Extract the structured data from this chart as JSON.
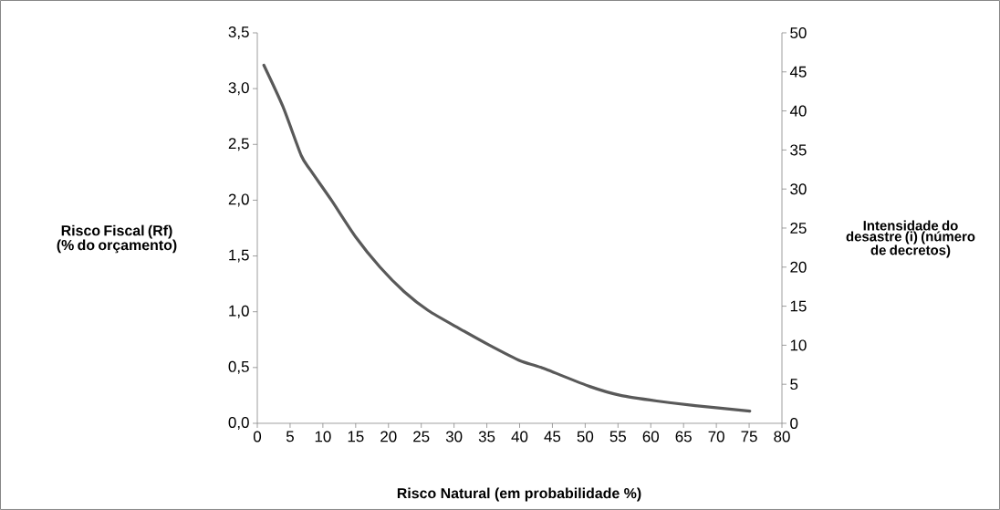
{
  "chart_data": {
    "type": "line",
    "xlabel": "Risco Natural (em probabilidade %)",
    "ylabel": "Risco Fiscal (Rf) (% do orçamento)",
    "y2label": "Intensidade do desastre (i) (número de decretos)",
    "x": [
      1,
      3.9,
      6.7,
      8.1,
      11.3,
      15,
      18.7,
      22.4,
      26.1,
      30.8,
      35.4,
      40.1,
      43.3,
      50.7,
      55.4,
      60.9,
      66.5,
      75.1
    ],
    "series": [
      {
        "color": "#595959",
        "values": [
          3.21,
          2.84,
          2.4,
          2.27,
          2.0,
          1.67,
          1.4,
          1.18,
          1.01,
          0.85,
          0.7,
          0.56,
          0.5,
          0.33,
          0.25,
          0.2,
          0.16,
          0.11
        ]
      }
    ],
    "xlim": [
      0,
      80
    ],
    "xticks": [
      0,
      5,
      10,
      15,
      20,
      25,
      30,
      35,
      40,
      45,
      50,
      55,
      60,
      65,
      70,
      75,
      80
    ],
    "ylim": [
      0,
      3.5
    ],
    "yticks": [
      {
        "value": 0,
        "label": "0,0"
      },
      {
        "value": 0.5,
        "label": "0,5"
      },
      {
        "value": 1,
        "label": "1,0"
      },
      {
        "value": 1.5,
        "label": "1,5"
      },
      {
        "value": 2,
        "label": "2,0"
      },
      {
        "value": 2.5,
        "label": "2,5"
      },
      {
        "value": 3,
        "label": "3,0"
      },
      {
        "value": 3.5,
        "label": "3,5"
      }
    ],
    "y2lim": [
      0,
      50
    ],
    "y2ticks": [
      0,
      5,
      10,
      15,
      20,
      25,
      30,
      35,
      40,
      45,
      50
    ],
    "grid": false,
    "marker": "none",
    "line_style": "solid"
  }
}
